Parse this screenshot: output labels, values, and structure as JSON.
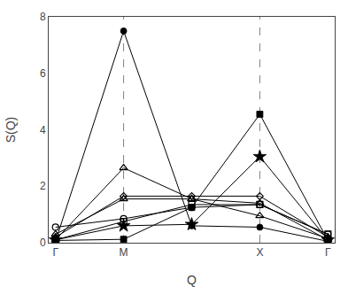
{
  "chart_data": {
    "type": "line",
    "x": [
      0,
      1,
      2,
      3,
      4
    ],
    "xlim": [
      -0.1,
      4.1
    ],
    "xticks": [
      {
        "value": 0,
        "label": "Γ"
      },
      {
        "value": 1,
        "label": "M"
      },
      {
        "value": 3,
        "label": "X"
      },
      {
        "value": 4,
        "label": "Γ"
      }
    ],
    "ylim": [
      0,
      8
    ],
    "yticks": [
      0,
      2,
      4,
      6,
      8
    ],
    "xlabel": "Q",
    "ylabel": "S(Q)",
    "vlines": [
      1,
      3
    ],
    "grid": false,
    "series": [
      {
        "color": "black",
        "marker": "circle",
        "values": [
          0.05,
          7.5,
          0.6,
          0.55,
          0.05
        ]
      },
      {
        "color": "black",
        "marker": "square",
        "values": [
          0.08,
          0.12,
          1.25,
          4.55,
          0.08
        ]
      },
      {
        "color": "black",
        "marker": "star",
        "values": [
          0.1,
          0.6,
          0.65,
          3.05,
          0.1
        ]
      },
      {
        "color": "black",
        "marker": "triangle-up-open",
        "values": [
          0.1,
          2.65,
          1.55,
          1.4,
          0.1
        ]
      },
      {
        "color": "black",
        "marker": "diamond-open",
        "values": [
          0.2,
          1.65,
          1.65,
          1.65,
          0.2
        ]
      },
      {
        "color": "black",
        "marker": "triangle-up-open",
        "values": [
          0.3,
          1.55,
          1.55,
          0.95,
          0.15
        ]
      },
      {
        "color": "black",
        "marker": "circle-open",
        "values": [
          0.55,
          0.85,
          1.25,
          1.35,
          0.3
        ]
      },
      {
        "color": "black",
        "marker": "square-open",
        "values": [
          0.1,
          0.75,
          1.35,
          1.35,
          0.3
        ]
      }
    ]
  }
}
